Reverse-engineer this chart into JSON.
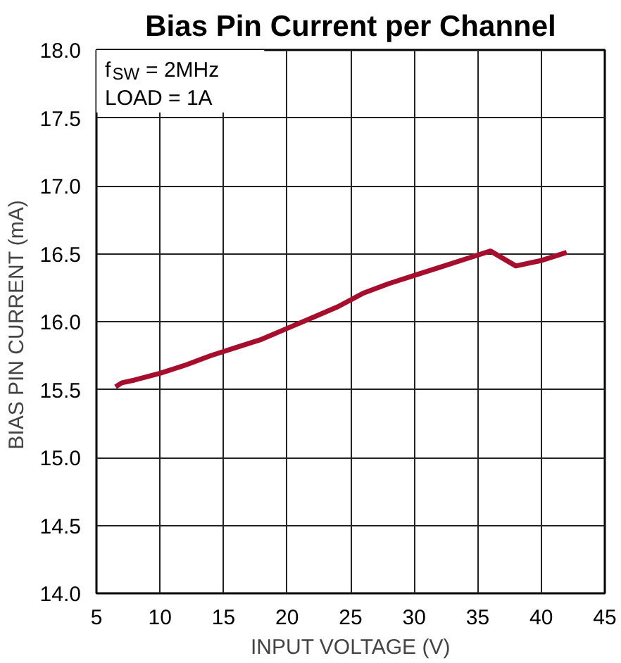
{
  "chart_data": {
    "type": "line",
    "title": "Bias Pin Current per Channel",
    "xlabel": "INPUT VOLTAGE (V)",
    "ylabel": "BIAS PIN CURRENT  (mA)",
    "x": [
      6.5,
      7,
      8,
      10,
      12,
      14,
      16,
      18,
      20,
      22,
      24,
      26,
      28,
      30,
      32,
      34,
      36,
      38,
      40,
      42
    ],
    "series": [
      {
        "color": "#a50e2d",
        "values": [
          15.52,
          15.55,
          15.57,
          15.62,
          15.68,
          15.75,
          15.81,
          15.87,
          15.95,
          16.03,
          16.11,
          16.21,
          16.28,
          16.34,
          16.4,
          16.46,
          16.52,
          16.41,
          16.45,
          16.51
        ]
      }
    ],
    "xlim": [
      5,
      45
    ],
    "ylim": [
      14,
      18
    ],
    "xticks": [
      5,
      10,
      15,
      20,
      25,
      30,
      35,
      40,
      45
    ],
    "yticks": [
      {
        "value": 14,
        "label": "14.0"
      },
      {
        "value": 14.5,
        "label": "14.5"
      },
      {
        "value": 15,
        "label": "15.0"
      },
      {
        "value": 15.5,
        "label": "15.5"
      },
      {
        "value": 16,
        "label": "16.0"
      },
      {
        "value": 16.5,
        "label": "16.5"
      },
      {
        "value": 17,
        "label": "17.0"
      },
      {
        "value": 17.5,
        "label": "17.5"
      },
      {
        "value": 18,
        "label": "18.0"
      }
    ],
    "grid": true,
    "line_style": "solid",
    "annotations": [
      "f$_{SW}$ = 2MHz",
      "LOAD = 1A"
    ]
  }
}
